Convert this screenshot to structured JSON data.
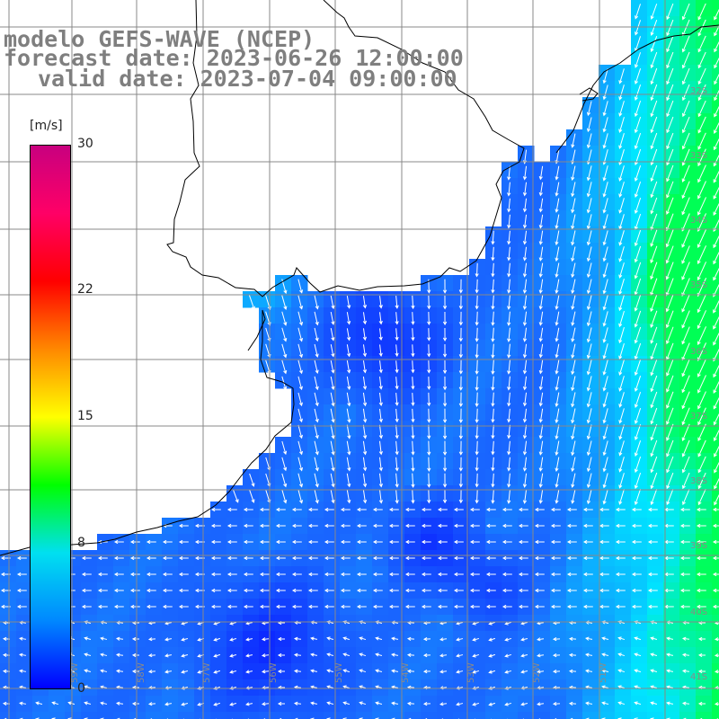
{
  "title": {
    "model": "modelo GEFS-WAVE (NCEP)",
    "forecast": "forecast date: 2023-06-26 12:00:00",
    "valid": "valid date: 2023-07-04 09:00:00"
  },
  "colorbar": {
    "unit": "[m/s]",
    "ticks": [
      {
        "value": 30,
        "label": "30"
      },
      {
        "value": 22,
        "label": "22"
      },
      {
        "value": 15,
        "label": "15"
      },
      {
        "value": 8,
        "label": "8"
      },
      {
        "value": 0,
        "label": "0"
      }
    ],
    "range": [
      0,
      30
    ],
    "colors": [
      "#0000ff",
      "#0088ff",
      "#00e0f0",
      "#00ff00",
      "#ffff00",
      "#ff8800",
      "#ff0000",
      "#ff0066",
      "#c8007f"
    ]
  },
  "grid": {
    "lat_labels": [
      "32S",
      "33S",
      "34S",
      "35S",
      "36S",
      "37S",
      "38S",
      "39S",
      "40S",
      "41S"
    ],
    "lon_labels": [
      "59W",
      "58W",
      "57W",
      "56W",
      "55W",
      "54W",
      "53W",
      "52W",
      "51W"
    ]
  },
  "colors": {
    "ocean_low": "#0a1aff",
    "ocean_mid": "#1a6cff",
    "ocean_high": "#00e6ff",
    "jet": "#00ff55",
    "land": "#ffffff",
    "grid": "#888888",
    "coast": "#000000",
    "arrow": "#ffffff"
  }
}
